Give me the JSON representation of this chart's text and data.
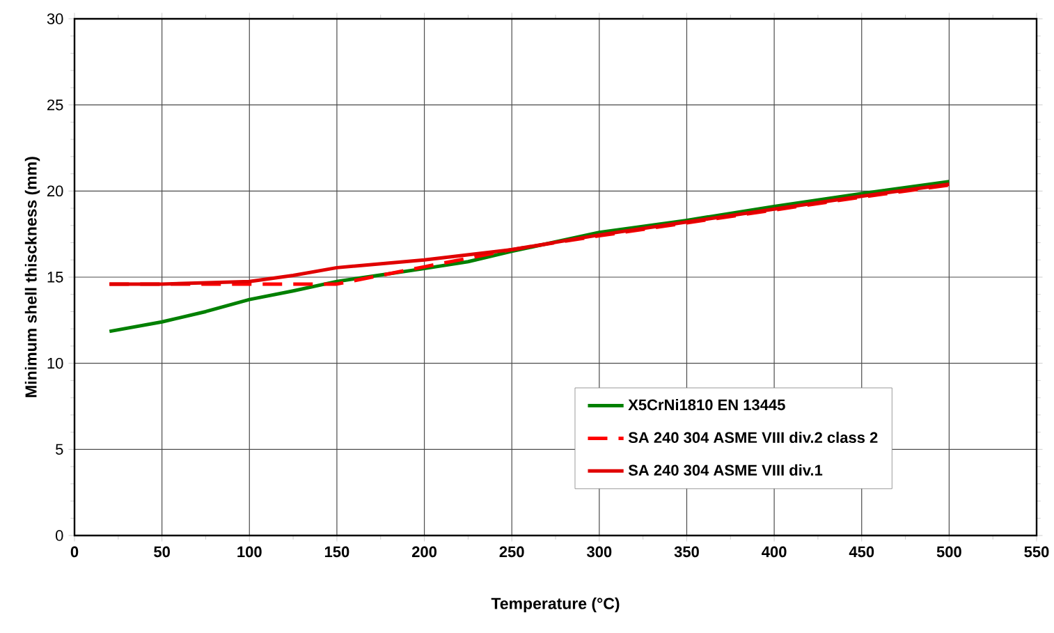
{
  "chart_data": {
    "type": "line",
    "xlabel": "Temperature (°C)",
    "ylabel": "Minimum shell thisckness (mm)",
    "xlim": [
      0,
      550
    ],
    "xticks": [
      0,
      50,
      100,
      150,
      200,
      250,
      300,
      350,
      400,
      450,
      500,
      550
    ],
    "ylim": [
      0,
      30
    ],
    "yticks": [
      0,
      5,
      10,
      15,
      20,
      25,
      30
    ],
    "grid": true,
    "legend": "bottom right",
    "marker": "none",
    "series": [
      {
        "name": "X5CrNi1810 EN 13445",
        "color": "#008000",
        "line_style": "solid",
        "x": [
          20,
          50,
          75,
          100,
          125,
          150,
          200,
          225,
          250,
          300,
          350,
          400,
          450,
          500
        ],
        "values": [
          11.85,
          12.4,
          13.0,
          13.7,
          14.2,
          14.75,
          15.5,
          15.9,
          16.5,
          17.6,
          18.3,
          19.1,
          19.85,
          20.55
        ]
      },
      {
        "name": "SA 240 304 ASME VIII div.2 class 2",
        "color": "#ff0000",
        "line_style": "dashed",
        "x": [
          20,
          100,
          125,
          150,
          200,
          225,
          250,
          300,
          350,
          400,
          450,
          500
        ],
        "values": [
          14.6,
          14.6,
          14.6,
          14.6,
          15.6,
          16.1,
          16.6,
          17.4,
          18.15,
          18.9,
          19.65,
          20.35
        ]
      },
      {
        "name": "SA 240 304 ASME VIII div.1",
        "color": "#e00000",
        "line_style": "solid",
        "x": [
          20,
          50,
          100,
          125,
          150,
          200,
          250,
          300,
          350,
          400,
          450,
          500
        ],
        "values": [
          14.6,
          14.6,
          14.75,
          15.1,
          15.55,
          16.0,
          16.6,
          17.45,
          18.2,
          18.95,
          19.7,
          20.4
        ]
      }
    ]
  }
}
